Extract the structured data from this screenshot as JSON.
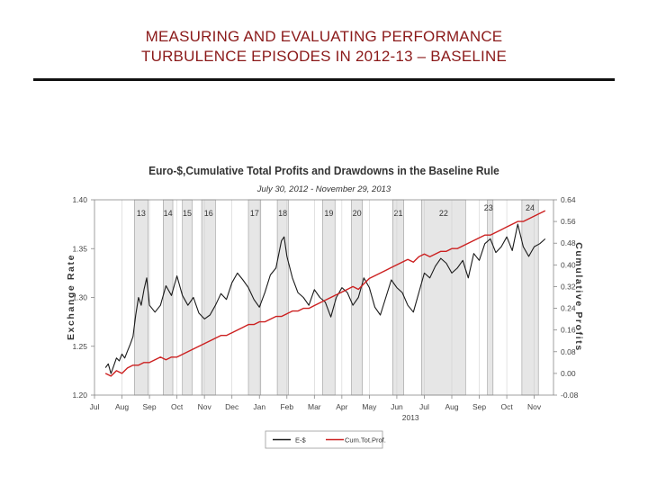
{
  "slide": {
    "title_line1": "MEASURING AND EVALUATING PERFORMANCE",
    "title_line2": "TURBULENCE EPISODES IN 2012-13 – BASELINE"
  },
  "chart_data": {
    "type": "line",
    "title": "Euro-$,Cumulative Total Profits and Drawdowns in the Baseline Rule",
    "subtitle": "July 30, 2012 - November 29, 2013",
    "ylabel": "Exchange Rate",
    "y2label": "Cumulative Profits",
    "ylim": [
      1.2,
      1.4
    ],
    "y2lim": [
      -0.08,
      0.64
    ],
    "yticks": [
      "1.40",
      "1.35",
      "1.30",
      "1.25",
      "1.20"
    ],
    "y2ticks": [
      "0.64",
      "0.56",
      "0.48",
      "0.40",
      "0.32",
      "0.24",
      "0.16",
      "0.08",
      "0.00",
      "-0.08"
    ],
    "xlim": [
      0,
      16.7
    ],
    "xticks": [
      {
        "label": "Jul",
        "x": 0
      },
      {
        "label": "Aug",
        "x": 1
      },
      {
        "label": "Sep",
        "x": 2
      },
      {
        "label": "Oct",
        "x": 3
      },
      {
        "label": "Nov",
        "x": 4
      },
      {
        "label": "Dec",
        "x": 5
      },
      {
        "label": "Jan",
        "x": 6
      },
      {
        "label": "Feb",
        "x": 7
      },
      {
        "label": "Mar",
        "x": 8
      },
      {
        "label": "Apr",
        "x": 9
      },
      {
        "label": "May",
        "x": 10
      },
      {
        "label": "Jun",
        "x": 11
      },
      {
        "label": "Jul",
        "x": 12
      },
      {
        "label": "Aug",
        "x": 13
      },
      {
        "label": "Sep",
        "x": 14
      },
      {
        "label": "Oct",
        "x": 15
      },
      {
        "label": "Nov",
        "x": 16
      }
    ],
    "year_label": {
      "label": "2013",
      "x": 11.5
    },
    "grid": true,
    "legend_position": "bottom-center",
    "colors": {
      "exchange_rate": "#1a1a1a",
      "profits": "#cc2020",
      "episode_fill": "#e6e6e6",
      "episode_edge": "#9a9a9a",
      "grid": "#d0d0d0"
    },
    "episodes": [
      {
        "label": "13",
        "start": 1.45,
        "end": 1.95
      },
      {
        "label": "14",
        "start": 2.5,
        "end": 2.85
      },
      {
        "label": "15",
        "start": 3.2,
        "end": 3.55
      },
      {
        "label": "16",
        "start": 3.9,
        "end": 4.4
      },
      {
        "label": "17",
        "start": 5.6,
        "end": 6.05
      },
      {
        "label": "18",
        "start": 6.65,
        "end": 7.05
      },
      {
        "label": "19",
        "start": 8.3,
        "end": 8.75
      },
      {
        "label": "20",
        "start": 9.35,
        "end": 9.75
      },
      {
        "label": "21",
        "start": 10.85,
        "end": 11.25
      },
      {
        "label": "22",
        "start": 11.9,
        "end": 13.5
      },
      {
        "label": "23",
        "start": 14.3,
        "end": 14.5
      },
      {
        "label": "24",
        "start": 15.55,
        "end": 16.15
      }
    ],
    "series": [
      {
        "name": "E-$",
        "axis": "left",
        "x": [
          0.4,
          0.5,
          0.6,
          0.7,
          0.8,
          0.9,
          1.0,
          1.1,
          1.2,
          1.3,
          1.4,
          1.5,
          1.6,
          1.7,
          1.8,
          1.9,
          2.0,
          2.2,
          2.4,
          2.6,
          2.8,
          3.0,
          3.2,
          3.4,
          3.6,
          3.8,
          4.0,
          4.2,
          4.4,
          4.6,
          4.8,
          5.0,
          5.2,
          5.4,
          5.6,
          5.8,
          6.0,
          6.2,
          6.4,
          6.6,
          6.8,
          6.9,
          7.0,
          7.2,
          7.4,
          7.6,
          7.8,
          8.0,
          8.2,
          8.4,
          8.6,
          8.8,
          9.0,
          9.2,
          9.4,
          9.6,
          9.8,
          10.0,
          10.2,
          10.4,
          10.6,
          10.8,
          11.0,
          11.2,
          11.4,
          11.6,
          11.8,
          12.0,
          12.2,
          12.4,
          12.6,
          12.8,
          13.0,
          13.2,
          13.4,
          13.6,
          13.8,
          14.0,
          14.2,
          14.4,
          14.6,
          14.8,
          15.0,
          15.2,
          15.4,
          15.6,
          15.8,
          16.0,
          16.2,
          16.4
        ],
        "values": [
          1.228,
          1.232,
          1.222,
          1.23,
          1.238,
          1.235,
          1.242,
          1.238,
          1.245,
          1.252,
          1.26,
          1.282,
          1.3,
          1.292,
          1.308,
          1.32,
          1.292,
          1.285,
          1.292,
          1.312,
          1.302,
          1.322,
          1.302,
          1.292,
          1.3,
          1.284,
          1.278,
          1.282,
          1.292,
          1.304,
          1.298,
          1.315,
          1.325,
          1.318,
          1.31,
          1.298,
          1.29,
          1.305,
          1.323,
          1.33,
          1.358,
          1.362,
          1.342,
          1.32,
          1.305,
          1.3,
          1.292,
          1.308,
          1.3,
          1.295,
          1.28,
          1.3,
          1.31,
          1.305,
          1.292,
          1.3,
          1.32,
          1.31,
          1.29,
          1.282,
          1.3,
          1.318,
          1.31,
          1.305,
          1.292,
          1.285,
          1.305,
          1.325,
          1.32,
          1.332,
          1.34,
          1.335,
          1.325,
          1.33,
          1.338,
          1.32,
          1.345,
          1.338,
          1.355,
          1.36,
          1.346,
          1.352,
          1.362,
          1.348,
          1.375,
          1.352,
          1.342,
          1.352,
          1.355,
          1.36
        ]
      },
      {
        "name": "Cum.Tot.Prof.",
        "axis": "right",
        "x": [
          0.4,
          0.6,
          0.8,
          1.0,
          1.2,
          1.4,
          1.6,
          1.8,
          2.0,
          2.2,
          2.4,
          2.6,
          2.8,
          3.0,
          3.2,
          3.4,
          3.6,
          3.8,
          4.0,
          4.2,
          4.4,
          4.6,
          4.8,
          5.0,
          5.2,
          5.4,
          5.6,
          5.8,
          6.0,
          6.2,
          6.4,
          6.6,
          6.8,
          7.0,
          7.2,
          7.4,
          7.6,
          7.8,
          8.0,
          8.2,
          8.4,
          8.6,
          8.8,
          9.0,
          9.2,
          9.4,
          9.6,
          9.8,
          10.0,
          10.2,
          10.4,
          10.6,
          10.8,
          11.0,
          11.2,
          11.4,
          11.6,
          11.8,
          12.0,
          12.2,
          12.4,
          12.6,
          12.8,
          13.0,
          13.2,
          13.4,
          13.6,
          13.8,
          14.0,
          14.2,
          14.4,
          14.6,
          14.8,
          15.0,
          15.2,
          15.4,
          15.6,
          15.8,
          16.0,
          16.2,
          16.4
        ],
        "values": [
          0.0,
          -0.01,
          0.01,
          0.0,
          0.02,
          0.03,
          0.03,
          0.04,
          0.04,
          0.05,
          0.06,
          0.05,
          0.06,
          0.06,
          0.07,
          0.08,
          0.09,
          0.1,
          0.11,
          0.12,
          0.13,
          0.14,
          0.14,
          0.15,
          0.16,
          0.17,
          0.18,
          0.18,
          0.19,
          0.19,
          0.2,
          0.21,
          0.21,
          0.22,
          0.23,
          0.23,
          0.24,
          0.24,
          0.25,
          0.26,
          0.27,
          0.28,
          0.29,
          0.3,
          0.31,
          0.32,
          0.31,
          0.33,
          0.35,
          0.36,
          0.37,
          0.38,
          0.39,
          0.4,
          0.41,
          0.42,
          0.41,
          0.43,
          0.44,
          0.43,
          0.44,
          0.45,
          0.45,
          0.46,
          0.46,
          0.47,
          0.48,
          0.49,
          0.5,
          0.51,
          0.51,
          0.52,
          0.53,
          0.54,
          0.55,
          0.56,
          0.56,
          0.57,
          0.58,
          0.59,
          0.6
        ]
      }
    ]
  }
}
